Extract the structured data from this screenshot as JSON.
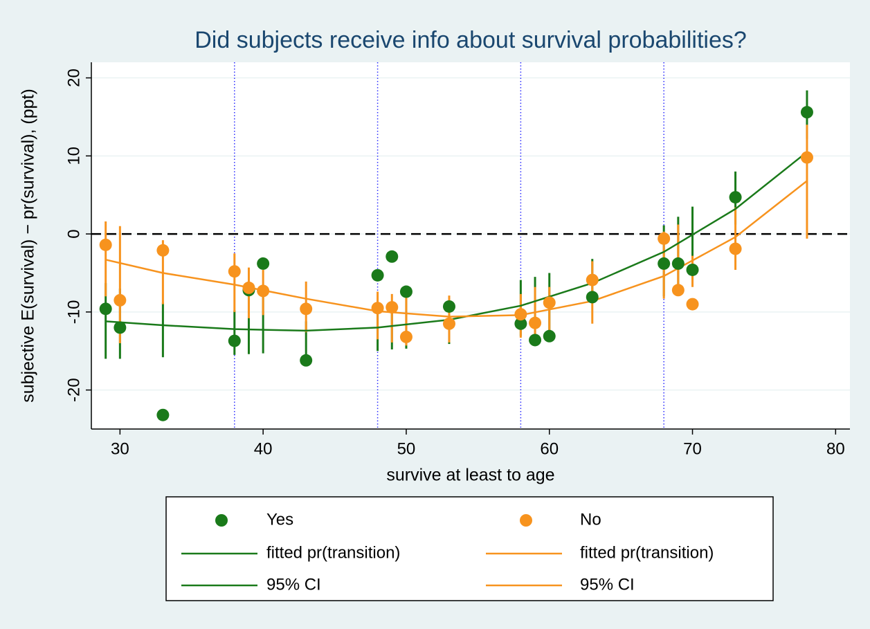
{
  "chart_data": {
    "type": "scatter",
    "title": "Did subjects receive info about survival probabilities?",
    "x_label": "survive at least to age",
    "y_label": "subjective E(survival) − pr(survival), (ppt)",
    "xlim": [
      28,
      81
    ],
    "xticks": [
      30,
      40,
      50,
      60,
      70,
      80
    ],
    "ylim": [
      -25,
      22
    ],
    "yticks": [
      -20,
      -10,
      0,
      10,
      20
    ],
    "grid": true,
    "xlines": [
      38,
      48,
      58,
      68
    ],
    "yline": 0,
    "legend": "bottom",
    "series": [
      {
        "name": "Yes",
        "type": "scatter",
        "color": "#1a7a1a",
        "x": [
          29,
          30,
          33,
          38,
          39,
          40,
          43,
          48,
          49,
          50,
          53,
          58,
          59,
          60,
          63,
          68,
          69,
          70,
          73,
          78
        ],
        "values": [
          -9.6,
          -12,
          -23.2,
          -13.7,
          -7.2,
          -3.8,
          -16.2,
          -5.3,
          -2.9,
          -7.4,
          -9.3,
          -11.5,
          -13.6,
          -13.1,
          -8.1,
          -3.8,
          -3.8,
          -4.6,
          4.7,
          15.6
        ]
      },
      {
        "name": "No",
        "type": "scatter",
        "color": "#f7931e",
        "x": [
          29,
          30,
          33,
          38,
          39,
          40,
          43,
          48,
          49,
          50,
          53,
          58,
          59,
          60,
          63,
          68,
          69,
          70,
          73,
          78
        ],
        "values": [
          -1.4,
          -8.5,
          -2.1,
          -4.8,
          -6.9,
          -7.3,
          -9.6,
          -9.5,
          -9.4,
          -13.2,
          -11.5,
          -10.3,
          -11.4,
          -8.8,
          -5.9,
          -0.6,
          -7.2,
          -9,
          -1.9,
          9.8
        ]
      },
      {
        "name": "fitted pr(transition)",
        "type": "line",
        "color": "#1a7a1a",
        "x": [
          29,
          33,
          38,
          43,
          48,
          53,
          58,
          63,
          68,
          73,
          78
        ],
        "values": [
          -11.2,
          -11.7,
          -12.2,
          -12.4,
          -12,
          -11,
          -9.2,
          -6.3,
          -2.3,
          3.2,
          10.5
        ]
      },
      {
        "name": "fitted pr(transition)",
        "type": "line",
        "color": "#f7931e",
        "x": [
          29,
          33,
          38,
          43,
          48,
          53,
          58,
          63,
          68,
          73,
          78
        ],
        "values": [
          -3.3,
          -5,
          -6.5,
          -8.3,
          -9.9,
          -10.6,
          -10.4,
          -8.6,
          -5.4,
          -0.4,
          6.8
        ]
      },
      {
        "name": "95% CI",
        "type": "rspike",
        "color": "#1a7a1a",
        "x": [
          29,
          30,
          33,
          38,
          39,
          40,
          43,
          48,
          49,
          50,
          53,
          58,
          59,
          60,
          63,
          68,
          69,
          70,
          73,
          78
        ],
        "low": [
          -16,
          -16,
          -15.8,
          -15.5,
          -15.4,
          -15.3,
          -16.1,
          -15,
          -14.8,
          -14.7,
          -14.1,
          -13.1,
          -12.8,
          -12.6,
          -8.1,
          -8,
          -7.3,
          -5.9,
          1.2,
          12.2
        ],
        "high": [
          -6.3,
          -7,
          -8.8,
          -9.8,
          -6.7,
          -7.9,
          -11.2,
          -10,
          -9.3,
          -8.3,
          -9,
          -5.9,
          -5.5,
          -5,
          -3.2,
          1.1,
          2.2,
          3.5,
          8,
          18.4
        ]
      },
      {
        "name": "95% CI",
        "type": "rspike",
        "color": "#f7931e",
        "x": [
          29,
          30,
          33,
          38,
          39,
          40,
          43,
          48,
          49,
          50,
          53,
          58,
          59,
          60,
          63,
          68,
          69,
          70,
          73,
          78
        ],
        "low": [
          -8,
          -14,
          -9,
          -10,
          -10.8,
          -10.4,
          -12.6,
          -13.5,
          -13.9,
          -14.3,
          -13.9,
          -13.3,
          -14,
          -13,
          -11.5,
          -8.3,
          -6.8,
          -6.8,
          -4.6,
          -0.6
        ],
        "high": [
          1.6,
          1,
          -0.8,
          -2.5,
          -4.3,
          -4.6,
          -6.1,
          -7.4,
          -7.7,
          -8.1,
          -7.9,
          -7.7,
          -6.8,
          -6.8,
          -3.5,
          0.3,
          1.2,
          -2.8,
          3.4,
          14
        ]
      }
    ]
  }
}
